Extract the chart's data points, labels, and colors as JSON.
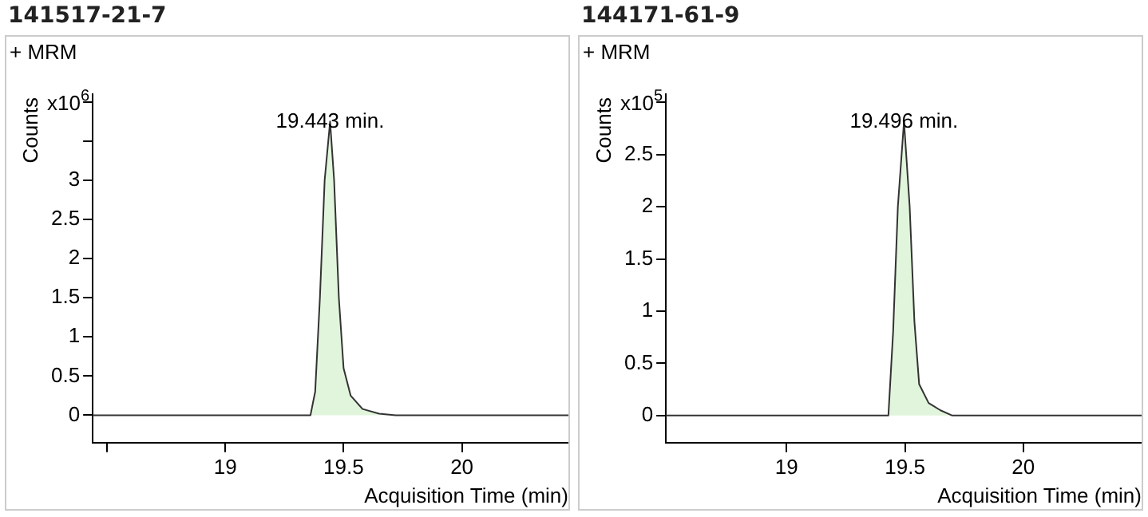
{
  "chart_data": [
    {
      "type": "area",
      "title": "141517-21-7",
      "subtitle": "+ MRM",
      "xlabel": "Acquisition Time (min)",
      "ylabel": "Counts",
      "annotations": [
        "x10$^{6}$",
        {
          "text": "19.443 min.",
          "x": 19.443,
          "y": 3.75
        }
      ],
      "series": [
        {
          "color": "#e1f5dc",
          "x": [
            18.44,
            19.36,
            19.38,
            19.4,
            19.42,
            19.443,
            19.46,
            19.48,
            19.5,
            19.53,
            19.58,
            19.65,
            19.72,
            20.45
          ],
          "values": [
            0,
            0,
            0.3,
            1.5,
            3.0,
            3.75,
            3.0,
            1.5,
            0.6,
            0.25,
            0.08,
            0.02,
            0,
            0
          ]
        }
      ],
      "xlim": [
        18.44,
        20.45
      ],
      "xticks": [
        {
          "value": 18.5,
          "label": null
        },
        19,
        19.5,
        20
      ],
      "ylim": [
        -0.35,
        4.1
      ],
      "yticks": [
        0,
        0.5,
        1,
        1.5,
        2,
        2.5,
        3,
        {
          "value": 3.5,
          "label": null
        },
        {
          "value": 4,
          "label": null
        }
      ],
      "grid": false,
      "legend": false
    },
    {
      "type": "area",
      "title": "144171-61-9",
      "subtitle": "+ MRM",
      "xlabel": "Acquisition Time (min)",
      "ylabel": "Counts",
      "annotations": [
        "x10$^{5}$",
        {
          "text": "19.496 min.",
          "x": 19.496,
          "y": 2.82
        }
      ],
      "series": [
        {
          "color": "#e1f5dc",
          "x": [
            18.49,
            19.43,
            19.45,
            19.47,
            19.496,
            19.52,
            19.54,
            19.56,
            19.6,
            19.65,
            19.7,
            20.5
          ],
          "values": [
            0,
            0,
            0.8,
            2.0,
            2.82,
            2.0,
            0.9,
            0.3,
            0.12,
            0.05,
            0,
            0
          ]
        }
      ],
      "xlim": [
        18.49,
        20.5
      ],
      "xticks": [
        19,
        19.5,
        20
      ],
      "ylim": [
        -0.26,
        3.08
      ],
      "yticks": [
        0,
        0.5,
        1,
        1.5,
        2,
        2.5,
        {
          "value": 3,
          "label": null
        }
      ],
      "grid": false,
      "legend": false
    }
  ]
}
